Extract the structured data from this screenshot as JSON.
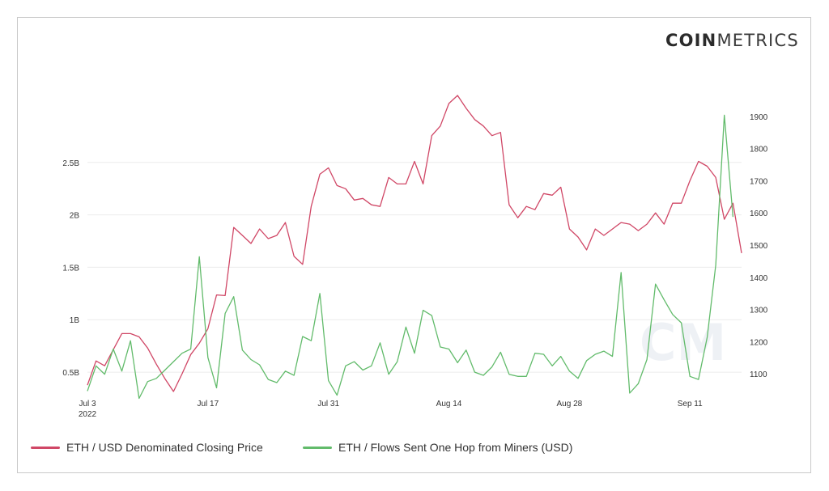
{
  "brand": {
    "bold": "COIN",
    "light": "METRICS"
  },
  "legend": [
    {
      "label": "ETH / USD Denominated Closing Price",
      "color": "#d04766"
    },
    {
      "label": "ETH / Flows Sent One Hop from Miners (USD)",
      "color": "#62bb6b"
    }
  ],
  "chart_data": {
    "type": "line",
    "x_tick_labels": [
      "Jul 3\n2022",
      "Jul 17",
      "Jul 31",
      "Aug 14",
      "Aug 28",
      "Sep 11"
    ],
    "x_tick_days": [
      0,
      14,
      28,
      42,
      56,
      70
    ],
    "left_axis": {
      "ticks": [
        "0.5B",
        "1B",
        "1.5B",
        "2B",
        "2.5B"
      ],
      "tick_values": [
        500000000,
        1000000000,
        1500000000,
        2000000000,
        2500000000
      ],
      "range": [
        300000000,
        3200000000
      ]
    },
    "right_axis": {
      "ticks": [
        "1100",
        "1200",
        "1300",
        "1400",
        "1500",
        "1600",
        "1700",
        "1800",
        "1900"
      ],
      "tick_values": [
        1100,
        1200,
        1300,
        1400,
        1500,
        1600,
        1700,
        1800,
        1900
      ],
      "range": [
        1040,
        1985
      ]
    },
    "grid": true,
    "legend_position": "bottom-left",
    "series": [
      {
        "name": "ETH / USD Denominated Closing Price",
        "axis": "right",
        "color": "#d04766",
        "values": [
          1065,
          1140,
          1125,
          1175,
          1225,
          1225,
          1215,
          1180,
          1130,
          1085,
          1045,
          1100,
          1160,
          1195,
          1240,
          1345,
          1343,
          1555,
          1530,
          1505,
          1550,
          1520,
          1530,
          1570,
          1465,
          1440,
          1620,
          1720,
          1740,
          1685,
          1675,
          1640,
          1645,
          1625,
          1620,
          1710,
          1690,
          1690,
          1760,
          1690,
          1840,
          1870,
          1940,
          1965,
          1925,
          1890,
          1870,
          1840,
          1850,
          1625,
          1585,
          1620,
          1610,
          1660,
          1655,
          1680,
          1550,
          1525,
          1485,
          1550,
          1530,
          1550,
          1570,
          1565,
          1545,
          1565,
          1600,
          1565,
          1630,
          1630,
          1700,
          1760,
          1745,
          1710,
          1580,
          1630,
          1475
        ]
      },
      {
        "name": "ETH / Flows Sent One Hop from Miners (USD)",
        "axis": "left",
        "color": "#62bb6b",
        "values": [
          320000000,
          560000000,
          480000000,
          720000000,
          510000000,
          800000000,
          250000000,
          410000000,
          440000000,
          520000000,
          600000000,
          680000000,
          720000000,
          1600000000,
          640000000,
          350000000,
          1060000000,
          1220000000,
          710000000,
          620000000,
          570000000,
          430000000,
          400000000,
          510000000,
          470000000,
          840000000,
          800000000,
          1250000000,
          420000000,
          280000000,
          560000000,
          600000000,
          520000000,
          560000000,
          780000000,
          480000000,
          600000000,
          930000000,
          680000000,
          1090000000,
          1040000000,
          740000000,
          720000000,
          590000000,
          710000000,
          500000000,
          470000000,
          550000000,
          690000000,
          480000000,
          460000000,
          460000000,
          680000000,
          670000000,
          560000000,
          650000000,
          510000000,
          440000000,
          610000000,
          670000000,
          700000000,
          650000000,
          1450000000,
          300000000,
          390000000,
          620000000,
          1340000000,
          1190000000,
          1050000000,
          970000000,
          460000000,
          430000000,
          830000000,
          1520000000,
          2950000000,
          1980000000
        ]
      }
    ]
  }
}
